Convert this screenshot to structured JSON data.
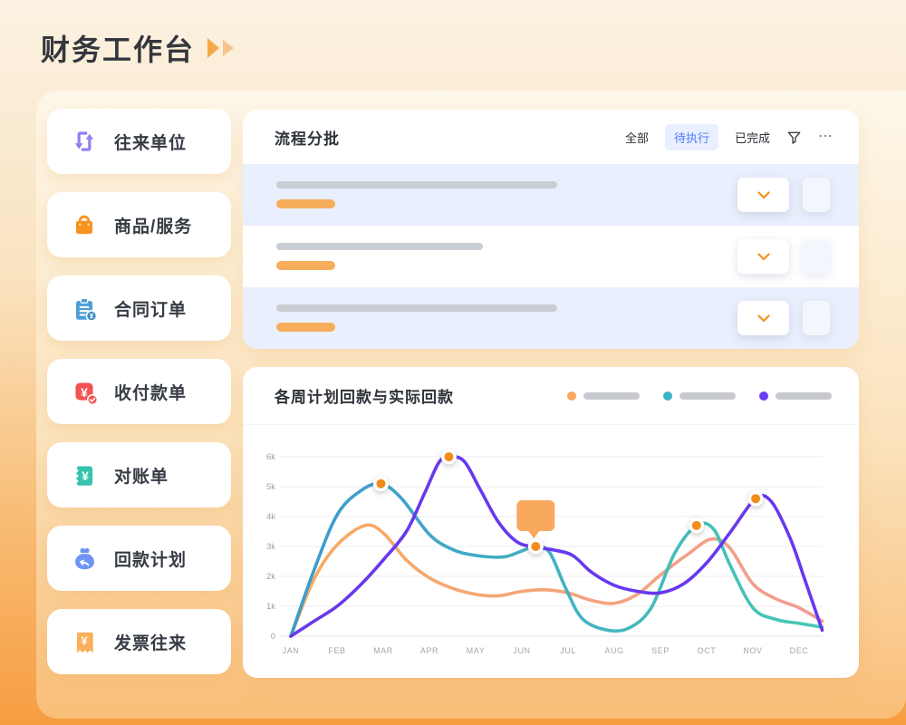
{
  "page": {
    "title": "财务工作台"
  },
  "sidebar": {
    "items": [
      {
        "label": "往来单位",
        "icon": "swap-icon",
        "color": "#8F80F1"
      },
      {
        "label": "商品/服务",
        "icon": "shopping-bag-icon",
        "color": "#F7931E"
      },
      {
        "label": "合同订单",
        "icon": "clipboard-yuan-icon",
        "color": "#4E9ED8"
      },
      {
        "label": "收付款单",
        "icon": "payment-yuan-icon",
        "color": "#F25352"
      },
      {
        "label": "对账单",
        "icon": "statement-yuan-icon",
        "color": "#35C4AE"
      },
      {
        "label": "回款计划",
        "icon": "moneybag-return-icon",
        "color": "#6E95F4"
      },
      {
        "label": "发票往来",
        "icon": "invoice-yuan-icon",
        "color": "#F9B058"
      }
    ]
  },
  "process_panel": {
    "title": "流程分批",
    "filters": [
      {
        "label": "全部",
        "active": false
      },
      {
        "label": "待执行",
        "active": true
      },
      {
        "label": "已完成",
        "active": false
      }
    ],
    "more_label": "⋯",
    "rows": [
      {
        "highlight": true,
        "gray_bar_width": 310,
        "accent_bar_width": 65
      },
      {
        "highlight": false,
        "gray_bar_width": 228,
        "accent_bar_width": 65
      },
      {
        "highlight": true,
        "gray_bar_width": 310,
        "accent_bar_width": 65
      }
    ]
  },
  "chart_panel": {
    "title": "各周计划回款与实际回款",
    "legend": [
      {
        "dot_color": "#F9A85C"
      },
      {
        "dot_color": "#3BB5C4"
      },
      {
        "dot_color": "#6B3BF5"
      }
    ]
  },
  "chart_data": {
    "type": "line",
    "title": "各周计划回款与实际回款",
    "x_ticks": [
      "JAN",
      "FEB",
      "MAR",
      "APR",
      "MAY",
      "JUN",
      "JUL",
      "AUG",
      "SEP",
      "OCT",
      "NOV",
      "DEC"
    ],
    "y_ticks": [
      "0",
      "1k",
      "2k",
      "3k",
      "4k",
      "5k",
      "6k"
    ],
    "ylim": [
      0,
      6000
    ],
    "grid": true,
    "legend_position": "top-right",
    "series": [
      {
        "name": "series-orange",
        "color_start": "#F7AC60",
        "color_end": "#F29C92",
        "points": [
          [
            0,
            0
          ],
          [
            0.5,
            1900
          ],
          [
            1,
            3050
          ],
          [
            1.6,
            3700
          ],
          [
            2,
            3450
          ],
          [
            2.5,
            2550
          ],
          [
            3,
            1950
          ],
          [
            3.5,
            1600
          ],
          [
            4,
            1400
          ],
          [
            4.5,
            1350
          ],
          [
            5,
            1500
          ],
          [
            5.5,
            1550
          ],
          [
            6,
            1450
          ],
          [
            6.5,
            1200
          ],
          [
            7,
            1100
          ],
          [
            7.5,
            1400
          ],
          [
            8,
            2050
          ],
          [
            8.6,
            2750
          ],
          [
            9.1,
            3250
          ],
          [
            9.5,
            2950
          ],
          [
            10,
            1750
          ],
          [
            10.5,
            1250
          ],
          [
            11,
            950
          ],
          [
            11.5,
            500
          ]
        ]
      },
      {
        "name": "series-teal",
        "color_start": "#3E9ACD",
        "color_end": "#47C9B5",
        "points": [
          [
            0,
            0
          ],
          [
            0.5,
            2200
          ],
          [
            1,
            4050
          ],
          [
            1.5,
            4850
          ],
          [
            1.95,
            5100
          ],
          [
            2.4,
            4600
          ],
          [
            3,
            3400
          ],
          [
            3.5,
            2900
          ],
          [
            4,
            2700
          ],
          [
            4.6,
            2650
          ],
          [
            5,
            2850
          ],
          [
            5.3,
            3000
          ],
          [
            5.6,
            2800
          ],
          [
            5.95,
            1600
          ],
          [
            6.3,
            600
          ],
          [
            6.8,
            220
          ],
          [
            7.3,
            260
          ],
          [
            7.8,
            950
          ],
          [
            8.3,
            2750
          ],
          [
            8.78,
            3700
          ],
          [
            9.15,
            3580
          ],
          [
            9.5,
            2400
          ],
          [
            10,
            950
          ],
          [
            10.5,
            560
          ],
          [
            11,
            430
          ],
          [
            11.5,
            300
          ]
        ]
      },
      {
        "name": "series-purple",
        "color_start": "#6838EF",
        "color_end": "#6838EF",
        "points": [
          [
            0,
            0
          ],
          [
            0.5,
            500
          ],
          [
            1,
            1000
          ],
          [
            1.5,
            1700
          ],
          [
            2,
            2550
          ],
          [
            2.5,
            3500
          ],
          [
            2.9,
            4800
          ],
          [
            3.2,
            5800
          ],
          [
            3.42,
            6000
          ],
          [
            3.75,
            5850
          ],
          [
            4.1,
            4900
          ],
          [
            4.5,
            3800
          ],
          [
            4.9,
            3150
          ],
          [
            5.3,
            2980
          ],
          [
            5.7,
            2880
          ],
          [
            6.1,
            2700
          ],
          [
            6.5,
            2150
          ],
          [
            7,
            1700
          ],
          [
            7.5,
            1500
          ],
          [
            8,
            1450
          ],
          [
            8.5,
            1750
          ],
          [
            9,
            2450
          ],
          [
            9.5,
            3450
          ],
          [
            10.06,
            4600
          ],
          [
            10.4,
            4500
          ],
          [
            10.8,
            3300
          ],
          [
            11.1,
            2000
          ],
          [
            11.5,
            200
          ]
        ]
      }
    ],
    "markers": [
      {
        "x": 1.95,
        "value": 5100
      },
      {
        "x": 3.42,
        "value": 6000
      },
      {
        "x": 5.3,
        "value": 3000
      },
      {
        "x": 8.78,
        "value": 3700
      },
      {
        "x": 10.06,
        "value": 4600
      }
    ],
    "marker_color": "#F28C1A",
    "tooltip": {
      "marker_index": 2,
      "color": "#F8A95D"
    }
  }
}
